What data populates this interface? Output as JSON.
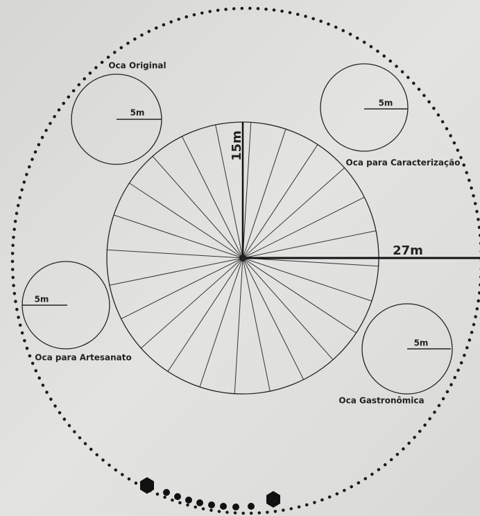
{
  "center": {
    "radius_label": "15m"
  },
  "outer": {
    "radius_label": "27m"
  },
  "ocas": [
    {
      "label": "Oca Original",
      "radius_label": "5m"
    },
    {
      "label": "Oca para Caracterização",
      "radius_label": "5m"
    },
    {
      "label": "Oca para Artesanato",
      "radius_label": "5m"
    },
    {
      "label": "Oca Gastronômica",
      "radius_label": "5m"
    }
  ]
}
